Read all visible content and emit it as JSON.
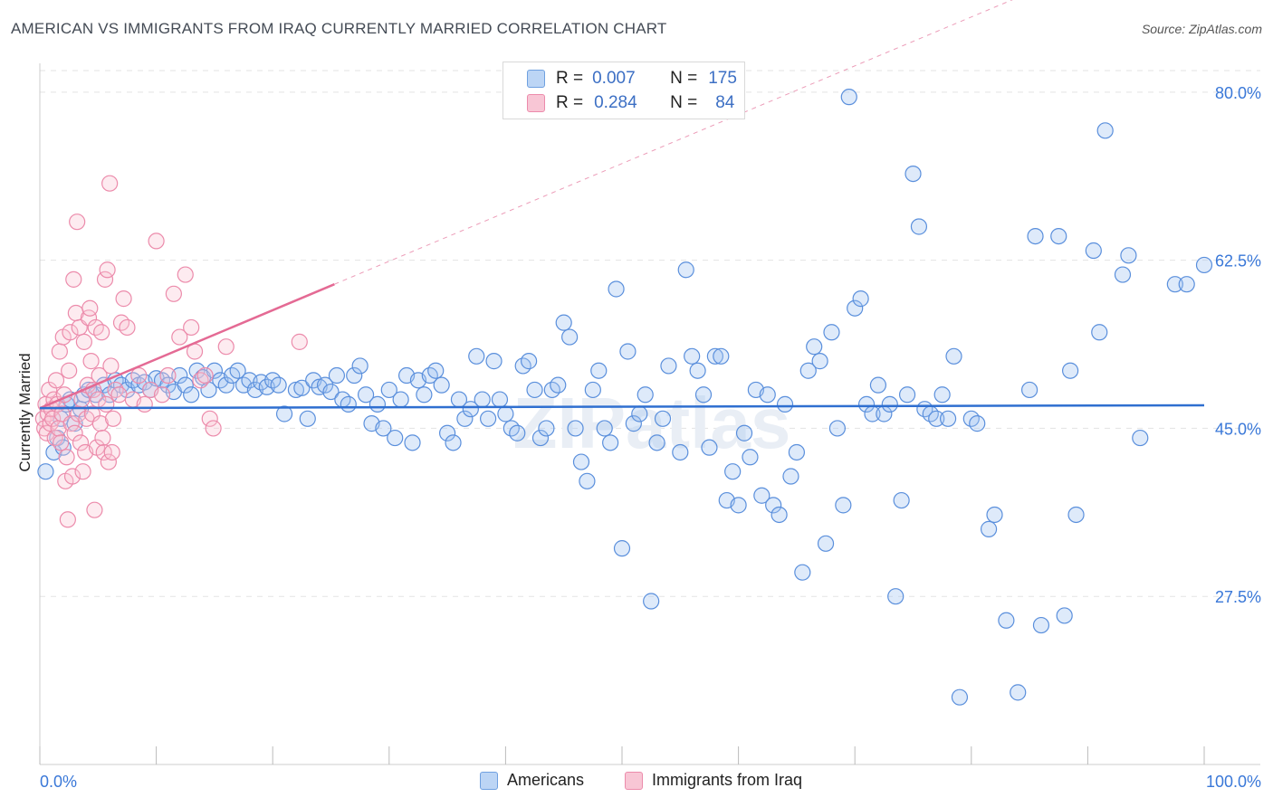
{
  "title": "AMERICAN VS IMMIGRANTS FROM IRAQ CURRENTLY MARRIED CORRELATION CHART",
  "source": "Source: ZipAtlas.com",
  "watermark": "ZIPatlas",
  "legend_stats": [
    {
      "r_label": "R =",
      "r_value": "0.007",
      "n_label": "N =",
      "n_value": "175",
      "color": "#6fa0e0",
      "fill": "#bcd5f5"
    },
    {
      "r_label": "R =",
      "r_value": "0.284",
      "n_label": "N =",
      "n_value": "84",
      "color": "#ec8bab",
      "fill": "#f8c6d5"
    }
  ],
  "colors": {
    "blue": "#3a78d8",
    "pink": "#e46a94",
    "axis_text": "#3a78d8",
    "grid": "#e3e3e3"
  },
  "chart_data": {
    "type": "scatter",
    "title": "AMERICAN VS IMMIGRANTS FROM IRAQ CURRENTLY MARRIED CORRELATION CHART",
    "ylabel": "Currently Married",
    "xlabel": "",
    "xlim": [
      0,
      100
    ],
    "ylim": [
      10,
      83
    ],
    "x_tick_labels": [
      "0.0%",
      "100.0%"
    ],
    "y_ticks": [
      27.5,
      45.0,
      62.5,
      80.0
    ],
    "y_tick_labels": [
      "27.5%",
      "45.0%",
      "62.5%",
      "80.0%"
    ],
    "grid": true,
    "legend_position": "bottom",
    "series": [
      {
        "name": "Americans",
        "color": "#3a78d8",
        "trend": {
          "x": [
            0,
            100
          ],
          "y": [
            47.1,
            47.4
          ]
        },
        "points": [
          [
            0.5,
            40.5
          ],
          [
            1.2,
            42.5
          ],
          [
            1.5,
            44.0
          ],
          [
            1.8,
            46.0
          ],
          [
            2.0,
            43.0
          ],
          [
            2.3,
            47.5
          ],
          [
            2.6,
            48.0
          ],
          [
            3.0,
            45.5
          ],
          [
            3.5,
            47.0
          ],
          [
            3.8,
            48.5
          ],
          [
            4.2,
            49.0
          ],
          [
            4.8,
            48.5
          ],
          [
            5.5,
            49.5
          ],
          [
            6.0,
            48.5
          ],
          [
            6.5,
            50.0
          ],
          [
            7.0,
            49.5
          ],
          [
            7.5,
            49.0
          ],
          [
            8.0,
            50.0
          ],
          [
            8.5,
            49.5
          ],
          [
            9.0,
            49.8
          ],
          [
            9.5,
            49.0
          ],
          [
            10.0,
            50.2
          ],
          [
            10.5,
            50.0
          ],
          [
            11.0,
            49.5
          ],
          [
            11.5,
            48.8
          ],
          [
            12.0,
            50.5
          ],
          [
            12.5,
            49.5
          ],
          [
            13.0,
            48.5
          ],
          [
            13.5,
            51.0
          ],
          [
            14.0,
            50.3
          ],
          [
            14.5,
            49.0
          ],
          [
            15.0,
            51.0
          ],
          [
            15.5,
            50.0
          ],
          [
            16.0,
            49.5
          ],
          [
            16.5,
            50.5
          ],
          [
            17.0,
            51.0
          ],
          [
            17.5,
            49.5
          ],
          [
            18.0,
            50.0
          ],
          [
            18.5,
            49.0
          ],
          [
            19.0,
            49.8
          ],
          [
            19.5,
            49.3
          ],
          [
            20.0,
            50.0
          ],
          [
            20.5,
            49.5
          ],
          [
            21.0,
            46.5
          ],
          [
            22.0,
            49.0
          ],
          [
            22.5,
            49.2
          ],
          [
            23.0,
            46.0
          ],
          [
            23.5,
            50.0
          ],
          [
            24.0,
            49.3
          ],
          [
            24.5,
            49.5
          ],
          [
            25.0,
            48.8
          ],
          [
            25.5,
            50.5
          ],
          [
            26.0,
            48.0
          ],
          [
            26.5,
            47.5
          ],
          [
            27.0,
            50.5
          ],
          [
            27.5,
            51.5
          ],
          [
            28.0,
            48.5
          ],
          [
            28.5,
            45.5
          ],
          [
            29.0,
            47.5
          ],
          [
            29.5,
            45.0
          ],
          [
            30.0,
            49.0
          ],
          [
            30.5,
            44.0
          ],
          [
            31.0,
            48.0
          ],
          [
            31.5,
            50.5
          ],
          [
            32.0,
            43.5
          ],
          [
            32.5,
            50.0
          ],
          [
            33.0,
            48.5
          ],
          [
            33.5,
            50.5
          ],
          [
            34.0,
            51.0
          ],
          [
            34.5,
            49.5
          ],
          [
            35.0,
            44.5
          ],
          [
            35.5,
            43.5
          ],
          [
            36.0,
            48.0
          ],
          [
            36.5,
            46.0
          ],
          [
            37.0,
            47.0
          ],
          [
            37.5,
            52.5
          ],
          [
            38.0,
            48.0
          ],
          [
            38.5,
            46.0
          ],
          [
            39.0,
            52.0
          ],
          [
            39.5,
            48.0
          ],
          [
            40.0,
            46.5
          ],
          [
            40.5,
            45.0
          ],
          [
            41.0,
            44.5
          ],
          [
            41.5,
            51.5
          ],
          [
            42.0,
            52.0
          ],
          [
            42.5,
            49.0
          ],
          [
            43.0,
            44.0
          ],
          [
            43.5,
            45.0
          ],
          [
            44.0,
            49.0
          ],
          [
            44.5,
            49.5
          ],
          [
            45.0,
            56.0
          ],
          [
            45.5,
            54.5
          ],
          [
            46.0,
            45.0
          ],
          [
            46.5,
            41.5
          ],
          [
            47.0,
            39.5
          ],
          [
            47.5,
            49.0
          ],
          [
            48.0,
            51.0
          ],
          [
            48.5,
            45.0
          ],
          [
            49.0,
            43.5
          ],
          [
            49.5,
            59.5
          ],
          [
            50.0,
            32.5
          ],
          [
            50.5,
            53.0
          ],
          [
            51.0,
            45.5
          ],
          [
            51.5,
            46.5
          ],
          [
            52.0,
            48.5
          ],
          [
            52.5,
            27.0
          ],
          [
            53.0,
            43.5
          ],
          [
            53.5,
            46.0
          ],
          [
            54.0,
            51.5
          ],
          [
            55.0,
            42.5
          ],
          [
            55.5,
            61.5
          ],
          [
            56.0,
            52.5
          ],
          [
            56.5,
            51.0
          ],
          [
            57.0,
            48.5
          ],
          [
            57.5,
            43.0
          ],
          [
            58.0,
            52.5
          ],
          [
            58.5,
            52.5
          ],
          [
            59.0,
            37.5
          ],
          [
            59.5,
            40.5
          ],
          [
            60.0,
            37.0
          ],
          [
            60.5,
            44.5
          ],
          [
            61.0,
            42.0
          ],
          [
            61.5,
            49.0
          ],
          [
            62.0,
            38.0
          ],
          [
            62.5,
            48.5
          ],
          [
            63.0,
            37.0
          ],
          [
            63.5,
            36.0
          ],
          [
            64.0,
            47.5
          ],
          [
            64.5,
            40.0
          ],
          [
            65.0,
            42.5
          ],
          [
            65.5,
            30.0
          ],
          [
            66.0,
            51.0
          ],
          [
            66.5,
            53.5
          ],
          [
            67.0,
            52.0
          ],
          [
            67.5,
            33.0
          ],
          [
            68.0,
            55.0
          ],
          [
            68.5,
            45.0
          ],
          [
            69.0,
            37.0
          ],
          [
            69.5,
            79.5
          ],
          [
            70.0,
            57.5
          ],
          [
            70.5,
            58.5
          ],
          [
            71.0,
            47.5
          ],
          [
            71.5,
            46.5
          ],
          [
            72.0,
            49.5
          ],
          [
            72.5,
            46.5
          ],
          [
            73.0,
            47.5
          ],
          [
            73.5,
            27.5
          ],
          [
            74.0,
            37.5
          ],
          [
            74.5,
            48.5
          ],
          [
            75.0,
            71.5
          ],
          [
            75.5,
            66.0
          ],
          [
            76.0,
            47.0
          ],
          [
            76.5,
            46.5
          ],
          [
            77.0,
            46.0
          ],
          [
            77.5,
            48.5
          ],
          [
            78.0,
            46.0
          ],
          [
            78.5,
            52.5
          ],
          [
            79.0,
            17.0
          ],
          [
            80.0,
            46.0
          ],
          [
            80.5,
            45.5
          ],
          [
            81.5,
            34.5
          ],
          [
            82.0,
            36.0
          ],
          [
            83.0,
            25.0
          ],
          [
            84.0,
            17.5
          ],
          [
            85.0,
            49.0
          ],
          [
            85.5,
            65.0
          ],
          [
            86.0,
            24.5
          ],
          [
            87.5,
            65.0
          ],
          [
            88.0,
            25.5
          ],
          [
            88.5,
            51.0
          ],
          [
            89.0,
            36.0
          ],
          [
            90.5,
            63.5
          ],
          [
            91.0,
            55.0
          ],
          [
            91.5,
            76.0
          ],
          [
            93.0,
            61.0
          ],
          [
            93.5,
            63.0
          ],
          [
            94.5,
            44.0
          ],
          [
            97.5,
            60.0
          ],
          [
            98.5,
            60.0
          ],
          [
            100.0,
            62.0
          ]
        ]
      },
      {
        "name": "Immigrants from Iraq",
        "color": "#e46a94",
        "trend": {
          "x": [
            0,
            25.3
          ],
          "y": [
            47.1,
            60.0
          ]
        },
        "trend_ext": {
          "x": [
            25.3,
            100
          ],
          "y": [
            60.0,
            98.0
          ]
        },
        "points": [
          [
            0.3,
            46.0
          ],
          [
            0.4,
            45.0
          ],
          [
            0.5,
            47.5
          ],
          [
            0.6,
            44.5
          ],
          [
            0.7,
            46.5
          ],
          [
            0.8,
            49.0
          ],
          [
            0.9,
            45.5
          ],
          [
            1.0,
            47.0
          ],
          [
            1.1,
            46.0
          ],
          [
            1.2,
            48.0
          ],
          [
            1.3,
            44.0
          ],
          [
            1.4,
            50.0
          ],
          [
            1.5,
            47.5
          ],
          [
            1.6,
            45.0
          ],
          [
            1.7,
            53.0
          ],
          [
            1.8,
            43.5
          ],
          [
            1.9,
            46.5
          ],
          [
            2.0,
            54.5
          ],
          [
            2.1,
            48.5
          ],
          [
            2.2,
            39.5
          ],
          [
            2.3,
            42.0
          ],
          [
            2.4,
            35.5
          ],
          [
            2.5,
            51.0
          ],
          [
            2.6,
            55.0
          ],
          [
            2.7,
            45.5
          ],
          [
            2.8,
            40.0
          ],
          [
            2.9,
            60.5
          ],
          [
            3.0,
            44.5
          ],
          [
            3.1,
            57.0
          ],
          [
            3.2,
            66.5
          ],
          [
            3.3,
            46.5
          ],
          [
            3.4,
            55.5
          ],
          [
            3.5,
            43.5
          ],
          [
            3.6,
            48.0
          ],
          [
            3.7,
            40.5
          ],
          [
            3.8,
            54.0
          ],
          [
            3.9,
            42.5
          ],
          [
            4.0,
            46.0
          ],
          [
            4.1,
            49.5
          ],
          [
            4.2,
            56.5
          ],
          [
            4.3,
            57.5
          ],
          [
            4.4,
            52.0
          ],
          [
            4.5,
            46.5
          ],
          [
            4.6,
            49.0
          ],
          [
            4.7,
            36.5
          ],
          [
            4.8,
            55.5
          ],
          [
            4.9,
            43.0
          ],
          [
            5.0,
            48.0
          ],
          [
            5.1,
            50.5
          ],
          [
            5.2,
            45.5
          ],
          [
            5.3,
            55.0
          ],
          [
            5.4,
            44.0
          ],
          [
            5.5,
            42.5
          ],
          [
            5.6,
            60.5
          ],
          [
            5.7,
            47.5
          ],
          [
            5.8,
            61.5
          ],
          [
            5.9,
            41.5
          ],
          [
            6.0,
            70.5
          ],
          [
            6.1,
            51.5
          ],
          [
            6.2,
            42.5
          ],
          [
            6.3,
            46.0
          ],
          [
            6.5,
            49.0
          ],
          [
            6.8,
            48.5
          ],
          [
            7.0,
            56.0
          ],
          [
            7.2,
            58.5
          ],
          [
            7.5,
            55.5
          ],
          [
            8.0,
            48.0
          ],
          [
            8.5,
            50.5
          ],
          [
            9.0,
            47.5
          ],
          [
            9.5,
            49.0
          ],
          [
            10.0,
            64.5
          ],
          [
            10.5,
            48.5
          ],
          [
            11.0,
            50.5
          ],
          [
            11.5,
            59.0
          ],
          [
            12.0,
            54.5
          ],
          [
            12.5,
            61.0
          ],
          [
            13.0,
            55.5
          ],
          [
            13.3,
            53.0
          ],
          [
            13.8,
            50.0
          ],
          [
            14.2,
            50.5
          ],
          [
            14.6,
            46.0
          ],
          [
            14.9,
            45.0
          ],
          [
            16.0,
            53.5
          ],
          [
            22.3,
            54.0
          ]
        ]
      }
    ]
  }
}
